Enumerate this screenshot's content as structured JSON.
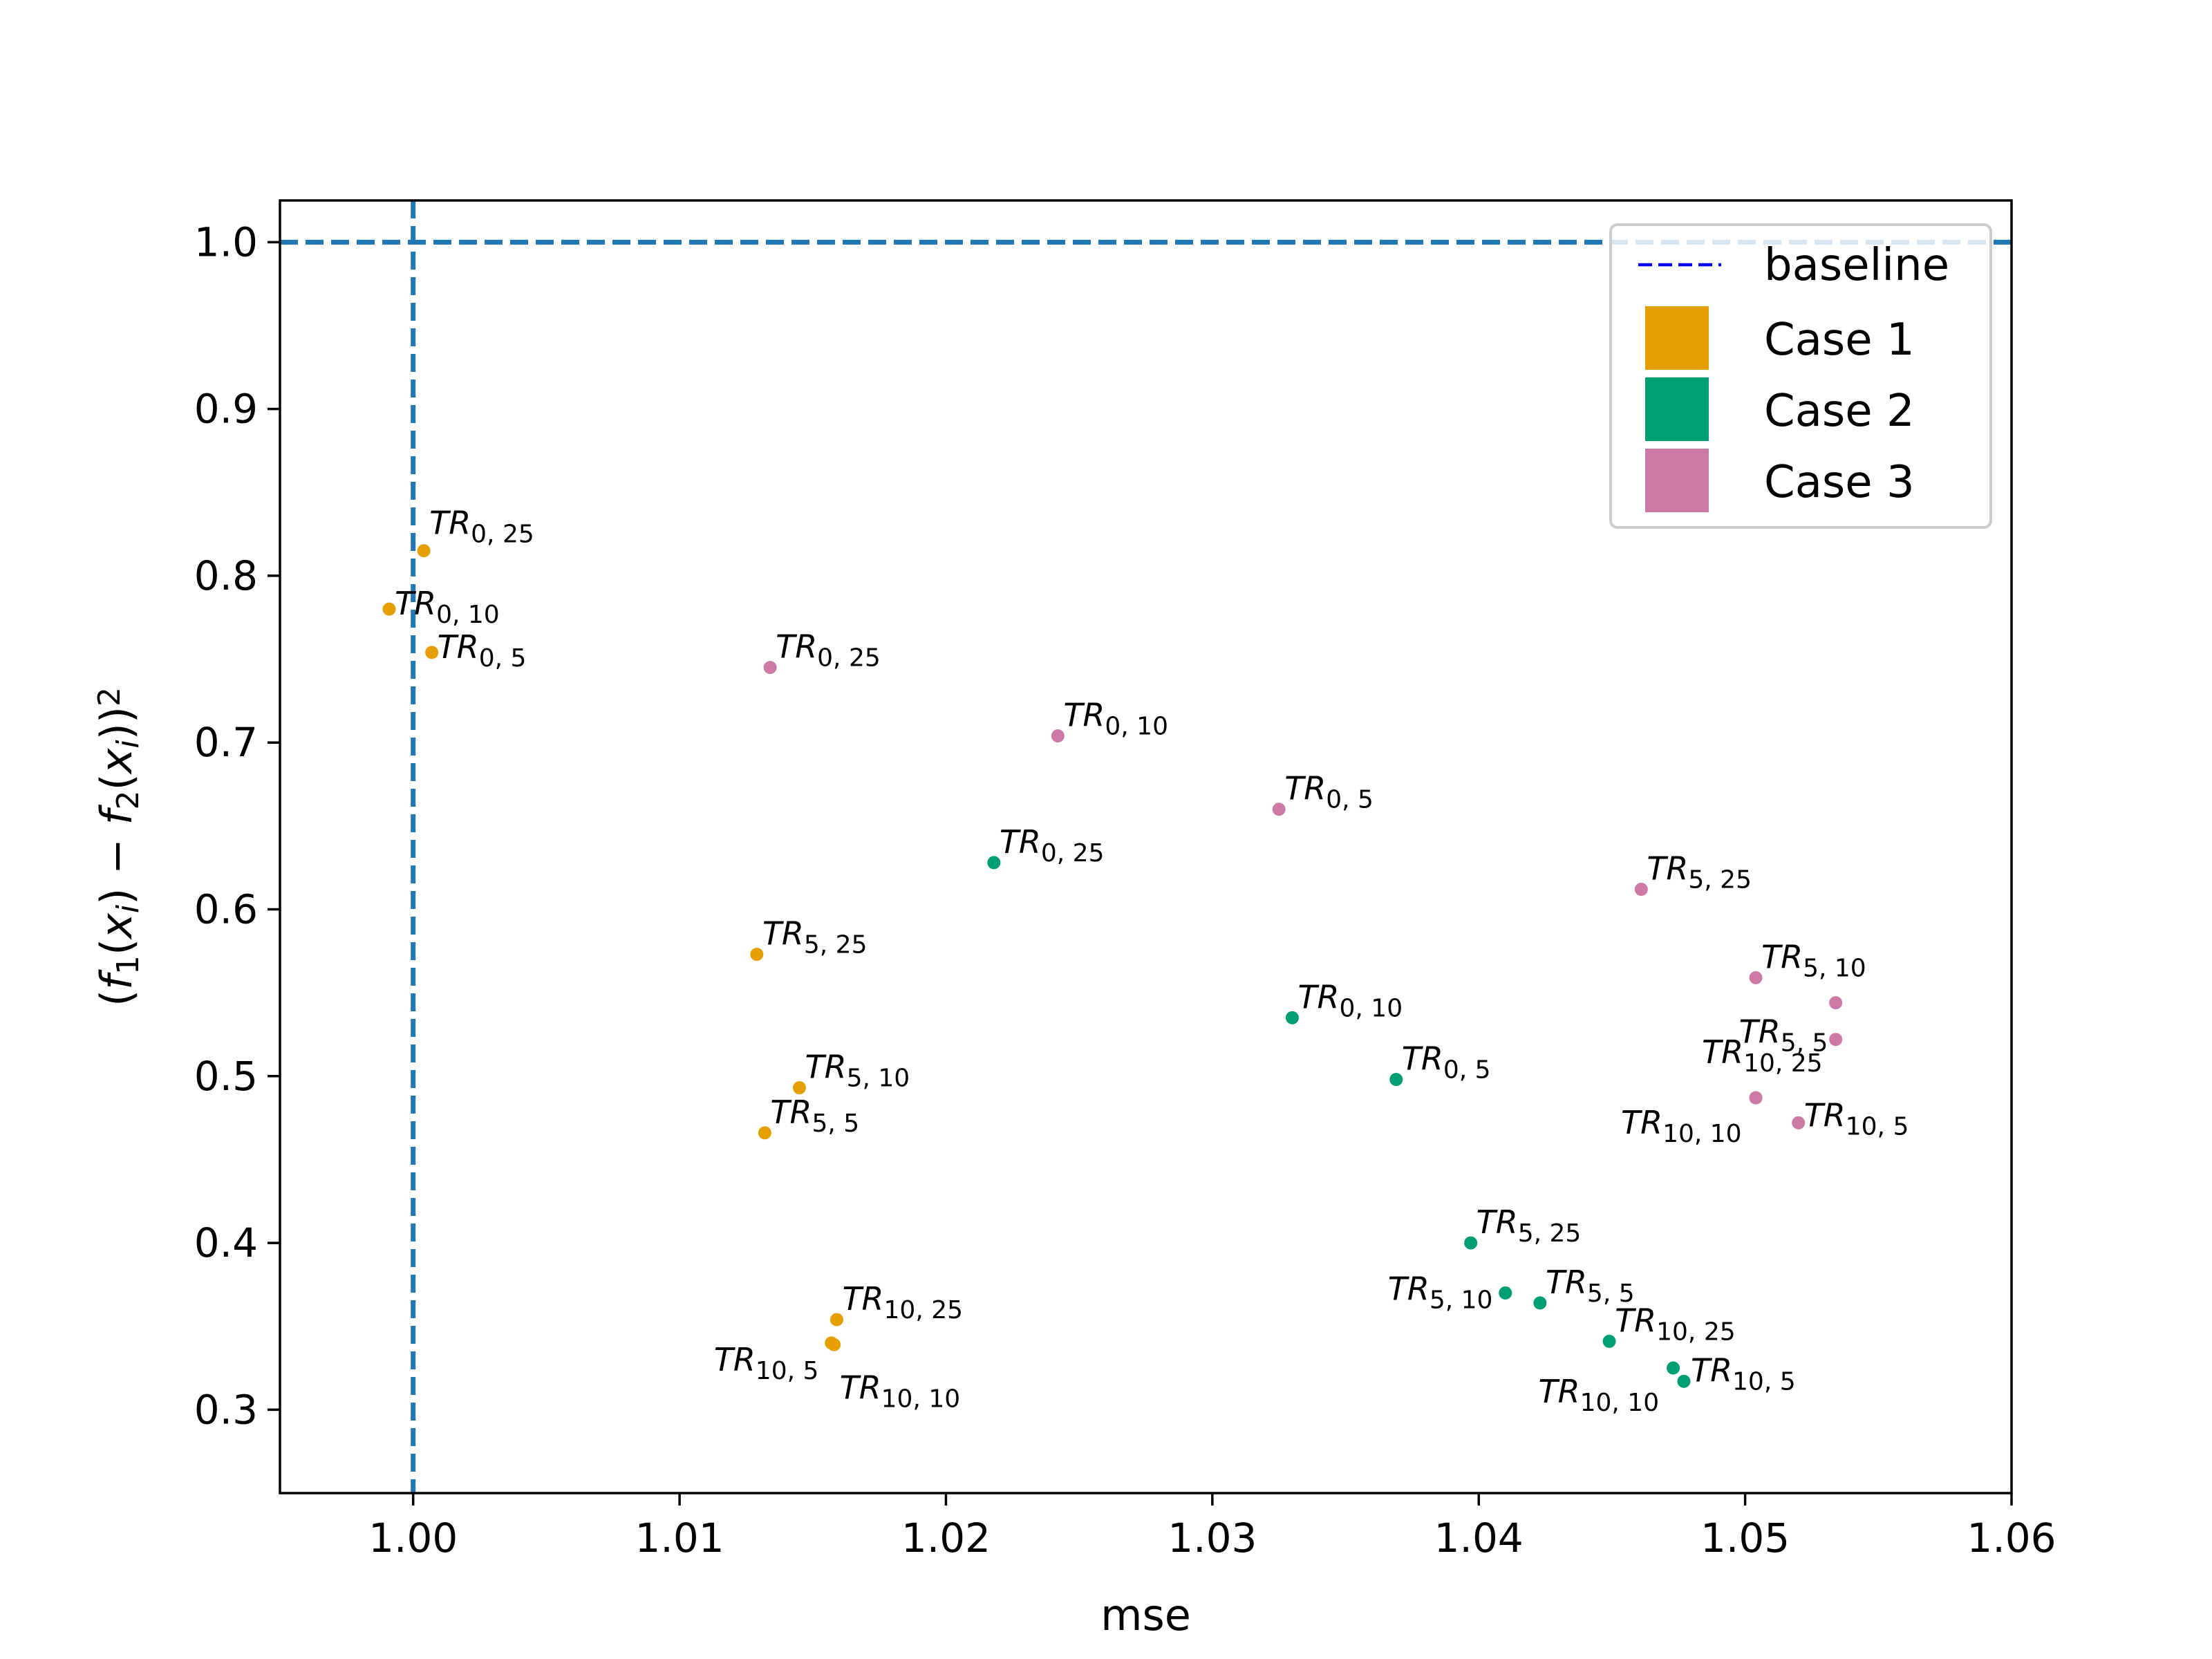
{
  "chart_data": {
    "type": "scatter",
    "xlabel": "mse",
    "ylabel": "(f1(xi) − f2(xi))²",
    "xlim": [
      0.995,
      1.06
    ],
    "ylim": [
      0.25,
      1.025
    ],
    "xticks": [
      1.0,
      1.01,
      1.02,
      1.03,
      1.04,
      1.05,
      1.06
    ],
    "xtick_labels": [
      "1.00",
      "1.01",
      "1.02",
      "1.03",
      "1.04",
      "1.05",
      "1.06"
    ],
    "yticks": [
      0.3,
      0.4,
      0.5,
      0.6,
      0.7,
      0.8,
      0.9,
      1.0
    ],
    "ytick_labels": [
      "0.3",
      "0.4",
      "0.5",
      "0.6",
      "0.7",
      "0.8",
      "0.9",
      "1.0"
    ],
    "grid": false,
    "legend_position": "top-right",
    "baseline": {
      "name": "baseline",
      "x": 1.0,
      "y": 1.0,
      "color": "#1f77b4",
      "legend_color": "#0000ff",
      "style": "dashed"
    },
    "series": [
      {
        "name": "Case 1",
        "color": "#E69F00",
        "points": [
          {
            "x": 1.0004,
            "y": 0.815,
            "label": "TR",
            "sub": "0, 25"
          },
          {
            "x": 0.9991,
            "y": 0.78,
            "label": "TR",
            "sub": "0, 10"
          },
          {
            "x": 1.0007,
            "y": 0.754,
            "label": "TR",
            "sub": "0, 5"
          },
          {
            "x": 1.0129,
            "y": 0.573,
            "label": "TR",
            "sub": "5, 25"
          },
          {
            "x": 1.0145,
            "y": 0.493,
            "label": "TR",
            "sub": "5, 10"
          },
          {
            "x": 1.0132,
            "y": 0.466,
            "label": "TR",
            "sub": "5, 5"
          },
          {
            "x": 1.0159,
            "y": 0.354,
            "label": "TR",
            "sub": "10, 25"
          },
          {
            "x": 1.0157,
            "y": 0.34,
            "label": "TR",
            "sub": "10, 5"
          },
          {
            "x": 1.0158,
            "y": 0.339,
            "label": "TR",
            "sub": "10, 10"
          }
        ]
      },
      {
        "name": "Case 2",
        "color": "#009E73",
        "points": [
          {
            "x": 1.0218,
            "y": 0.628,
            "label": "TR",
            "sub": "0, 25"
          },
          {
            "x": 1.033,
            "y": 0.535,
            "label": "TR",
            "sub": "0, 10"
          },
          {
            "x": 1.0369,
            "y": 0.498,
            "label": "TR",
            "sub": "0, 5"
          },
          {
            "x": 1.0397,
            "y": 0.4,
            "label": "TR",
            "sub": "5, 25"
          },
          {
            "x": 1.041,
            "y": 0.37,
            "label": "TR",
            "sub": "5, 10"
          },
          {
            "x": 1.0423,
            "y": 0.364,
            "label": "TR",
            "sub": "5, 5"
          },
          {
            "x": 1.0449,
            "y": 0.341,
            "label": "TR",
            "sub": "10, 25"
          },
          {
            "x": 1.0473,
            "y": 0.325,
            "label": "TR",
            "sub": "10, 10"
          },
          {
            "x": 1.0477,
            "y": 0.317,
            "label": "TR",
            "sub": "10, 5"
          }
        ]
      },
      {
        "name": "Case 3",
        "color": "#CC79A7",
        "points": [
          {
            "x": 1.0134,
            "y": 0.745,
            "label": "TR",
            "sub": "0, 25"
          },
          {
            "x": 1.0242,
            "y": 0.704,
            "label": "TR",
            "sub": "0, 10"
          },
          {
            "x": 1.0325,
            "y": 0.66,
            "label": "TR",
            "sub": "0, 5"
          },
          {
            "x": 1.0461,
            "y": 0.612,
            "label": "TR",
            "sub": "5, 25"
          },
          {
            "x": 1.0504,
            "y": 0.559,
            "label": "TR",
            "sub": "5, 10"
          },
          {
            "x": 1.0534,
            "y": 0.544,
            "label": "",
            "sub": ""
          },
          {
            "x": 1.0534,
            "y": 0.522,
            "label": "TR",
            "sub": "5, 5"
          },
          {
            "x": 1.0504,
            "y": 0.487,
            "label": "TR",
            "sub": "10, 25"
          },
          {
            "x": 1.052,
            "y": 0.472,
            "label": "TR",
            "sub": "10, 5"
          },
          {
            "x": 1.0504,
            "y": 0.487,
            "label": "TR",
            "sub": "10, 10"
          }
        ]
      }
    ]
  }
}
